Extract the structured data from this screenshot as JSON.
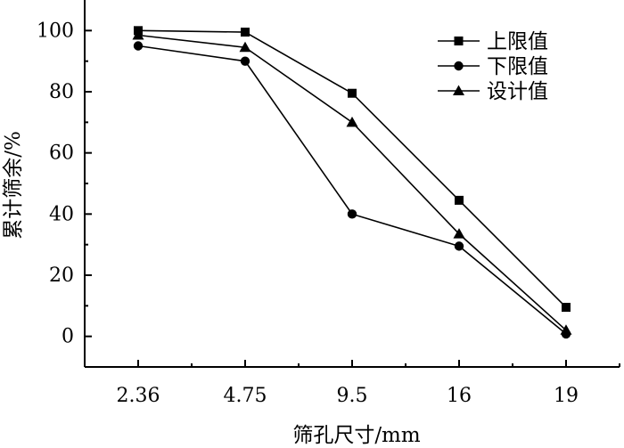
{
  "chart_data": {
    "type": "line",
    "title": "",
    "xlabel": "筛孔尺寸/mm",
    "ylabel": "累计筛余/%",
    "categories": [
      "2.36",
      "4.75",
      "9.5",
      "16",
      "19"
    ],
    "ylim": [
      -10,
      110
    ],
    "yticks": [
      0,
      20,
      40,
      60,
      80,
      100
    ],
    "grid": false,
    "legend_position": "top-right",
    "series": [
      {
        "name": "上限值",
        "marker": "square",
        "values": [
          100,
          99.5,
          79.5,
          44.5,
          9.5
        ]
      },
      {
        "name": "下限值",
        "marker": "circle",
        "values": [
          95,
          90,
          40,
          29.5,
          0.8
        ]
      },
      {
        "name": "设计值",
        "marker": "triangle",
        "values": [
          98.5,
          94.5,
          70,
          33.5,
          2
        ]
      }
    ]
  }
}
